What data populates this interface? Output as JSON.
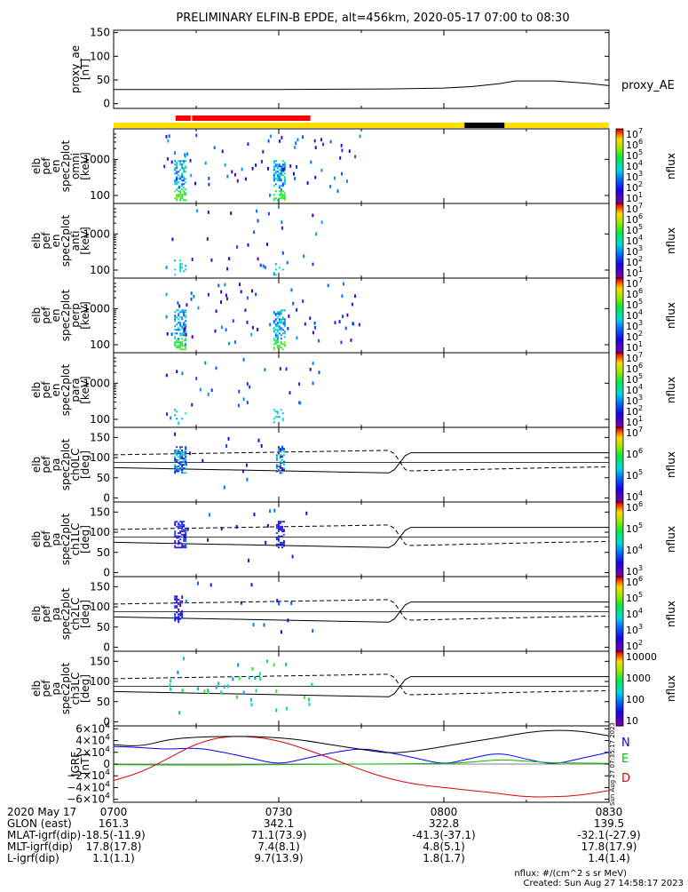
{
  "title": "PRELIMINARY ELFIN-B EPDE, alt=456km, 2020-05-17 07:00 to 08:30",
  "colors": {
    "status_yellow": "#ffe000",
    "status_red": "#ff0000",
    "status_black": "#000000",
    "grf_n": "#0000ff",
    "grf_e": "#00c000",
    "grf_d": "#e00000",
    "grf_total": "#000000"
  },
  "status_bar": {
    "background": "yellow",
    "segments": [
      {
        "color": "red",
        "start": "07:11:15",
        "end": "07:14:00"
      },
      {
        "color": "red",
        "start": "07:14:15",
        "end": "07:35:45"
      },
      {
        "color": "black",
        "start": "08:03:45",
        "end": "08:11:00"
      }
    ]
  },
  "chart_data": [
    {
      "type": "line",
      "panel": "proxy_ae",
      "ylabel": [
        "proxy_ae",
        "[nT]"
      ],
      "yticks": [
        "150",
        "100",
        "50",
        "0"
      ],
      "ylim": [
        -10,
        155
      ],
      "series": [
        {
          "name": "proxy_AE",
          "x": [
            "07:00",
            "07:30",
            "07:50",
            "08:00",
            "08:05",
            "08:10",
            "08:13",
            "08:20",
            "08:26",
            "08:30"
          ],
          "values": [
            30,
            30,
            31,
            33,
            36,
            42,
            48,
            48,
            43,
            38
          ]
        }
      ]
    },
    {
      "type": "heatmap",
      "panel": "spec-omni",
      "ylabel": [
        "elb",
        "pef",
        "en",
        "spec2plot",
        "omni",
        "[keV]"
      ],
      "yticks": [
        "1000",
        "100"
      ],
      "yscale": "log",
      "ylim": [
        60,
        7000
      ],
      "colorbar": {
        "label": "nflux",
        "ticks": [
          "10",
          "10",
          "10",
          "10",
          "10",
          "10",
          "10"
        ],
        "exp": [
          "7",
          "6",
          "5",
          "4",
          "3",
          "2",
          "1"
        ]
      }
    },
    {
      "type": "heatmap",
      "panel": "spec-anti",
      "ylabel": [
        "elb",
        "pef",
        "en",
        "spec2plot",
        "anti",
        "[keV]"
      ],
      "yticks": [
        "1000",
        "100"
      ],
      "yscale": "log",
      "ylim": [
        60,
        7000
      ],
      "colorbar": {
        "label": "nflux",
        "ticks": [
          "10",
          "10",
          "10",
          "10",
          "10",
          "10",
          "10"
        ],
        "exp": [
          "7",
          "6",
          "5",
          "4",
          "3",
          "2",
          "1"
        ]
      }
    },
    {
      "type": "heatmap",
      "panel": "spec-perp",
      "ylabel": [
        "elb",
        "pef",
        "en",
        "spec2plot",
        "perp",
        "[keV]"
      ],
      "yticks": [
        "1000",
        "100"
      ],
      "yscale": "log",
      "ylim": [
        60,
        7000
      ],
      "colorbar": {
        "label": "nflux",
        "ticks": [
          "10",
          "10",
          "10",
          "10",
          "10",
          "10",
          "10"
        ],
        "exp": [
          "7",
          "6",
          "5",
          "4",
          "3",
          "2",
          "1"
        ]
      }
    },
    {
      "type": "heatmap",
      "panel": "spec-para",
      "ylabel": [
        "elb",
        "pef",
        "en",
        "spec2plot",
        "para",
        "[keV]"
      ],
      "yticks": [
        "1000",
        "100"
      ],
      "yscale": "log",
      "ylim": [
        60,
        7000
      ],
      "colorbar": {
        "label": "nflux",
        "ticks": [
          "10",
          "10",
          "10",
          "10",
          "10",
          "10",
          "10"
        ],
        "exp": [
          "7",
          "6",
          "5",
          "4",
          "3",
          "2",
          "1"
        ]
      }
    },
    {
      "type": "heatmap",
      "panel": "pa-ch0",
      "ylabel": [
        "elb",
        "pef",
        "pa",
        "spec2plot",
        "ch0LC",
        "[deg]"
      ],
      "yticks": [
        "150",
        "100",
        "50",
        "0"
      ],
      "ylim": [
        -10,
        175
      ],
      "colorbar": {
        "label": "nflux",
        "ticks": [
          "10",
          "10",
          "10",
          "10"
        ],
        "exp": [
          "7",
          "6",
          "5",
          "4"
        ]
      }
    },
    {
      "type": "heatmap",
      "panel": "pa-ch1",
      "ylabel": [
        "elb",
        "pef",
        "pa",
        "spec2plot",
        "ch1LC",
        "[deg]"
      ],
      "yticks": [
        "150",
        "100",
        "50",
        "0"
      ],
      "ylim": [
        -10,
        175
      ],
      "colorbar": {
        "label": "nflux",
        "ticks": [
          "10",
          "10",
          "10",
          "10"
        ],
        "exp": [
          "6",
          "5",
          "4",
          "3"
        ]
      }
    },
    {
      "type": "heatmap",
      "panel": "pa-ch2",
      "ylabel": [
        "elb",
        "pef",
        "pa",
        "spec2plot",
        "ch2LC",
        "[deg]"
      ],
      "yticks": [
        "150",
        "100",
        "50",
        "0"
      ],
      "ylim": [
        -10,
        175
      ],
      "colorbar": {
        "label": "nflux",
        "ticks": [
          "10",
          "10",
          "10",
          "10",
          "10"
        ],
        "exp": [
          "6",
          "5",
          "4",
          "3",
          "2"
        ]
      }
    },
    {
      "type": "heatmap",
      "panel": "pa-ch3",
      "ylabel": [
        "elb",
        "pef",
        "pa",
        "spec2plot",
        "ch3LC",
        "[deg]"
      ],
      "yticks": [
        "150",
        "100",
        "50",
        "0"
      ],
      "ylim": [
        -10,
        175
      ],
      "colorbar": {
        "label": "nflux",
        "ticks": [
          "10000",
          "1000",
          "100",
          "10"
        ],
        "exp": [
          "",
          "",
          "",
          ""
        ]
      }
    },
    {
      "type": "line",
      "panel": "igrf",
      "ylabel": [
        "IGRF",
        "[nT]"
      ],
      "yticks": [
        "6×10",
        "4×10",
        "2×10",
        "0",
        "−2×10",
        "−4×10",
        "−6×10"
      ],
      "ytick_exp": [
        "4",
        "4",
        "4",
        "",
        "4",
        "4",
        "4"
      ],
      "ylim": [
        -65000,
        65000
      ],
      "legend": [
        "N",
        "E",
        "D"
      ],
      "side_text": "Sun Aug 27 07:35:17 2023",
      "series": [
        {
          "name": "N",
          "x": [
            "07:00",
            "07:05",
            "07:10",
            "07:15",
            "07:20",
            "07:25",
            "07:30",
            "07:35",
            "07:40",
            "07:45",
            "07:50",
            "07:55",
            "08:00",
            "08:05",
            "08:10",
            "08:15",
            "08:20",
            "08:25",
            "08:30"
          ],
          "values": [
            30000,
            28000,
            25000,
            28000,
            20000,
            10000,
            -1000,
            10000,
            20000,
            27000,
            20000,
            10000,
            -1000,
            10000,
            20000,
            8000,
            -1000,
            10000,
            20000
          ]
        },
        {
          "name": "E",
          "x": [
            "07:00",
            "07:15",
            "07:30",
            "07:45",
            "08:00",
            "08:05",
            "08:10",
            "08:15",
            "08:20",
            "08:25",
            "08:30"
          ],
          "values": [
            -1000,
            -2000,
            -1000,
            0,
            1000,
            3000,
            8000,
            5000,
            2000,
            2000,
            1000
          ]
        },
        {
          "name": "D",
          "x": [
            "07:00",
            "07:05",
            "07:10",
            "07:15",
            "07:20",
            "07:25",
            "07:30",
            "07:35",
            "07:40",
            "07:45",
            "07:50",
            "07:55",
            "08:00",
            "08:05",
            "08:10",
            "08:15",
            "08:20",
            "08:25",
            "08:30"
          ],
          "values": [
            -28000,
            -14000,
            10000,
            35000,
            47000,
            47000,
            40000,
            25000,
            8000,
            -10000,
            -25000,
            -35000,
            -40000,
            -45000,
            -50000,
            -56000,
            -56000,
            -53000,
            -45000
          ]
        },
        {
          "name": "total",
          "x": [
            "07:00",
            "07:05",
            "07:10",
            "07:15",
            "07:20",
            "07:25",
            "07:30",
            "07:35",
            "07:40",
            "07:45",
            "07:50",
            "07:55",
            "08:00",
            "08:05",
            "08:10",
            "08:15",
            "08:20",
            "08:25",
            "08:30"
          ],
          "values": [
            33000,
            30000,
            42000,
            46000,
            47000,
            47000,
            45000,
            40000,
            32000,
            25000,
            18000,
            22000,
            30000,
            38000,
            45000,
            54000,
            58000,
            56000,
            48000
          ]
        }
      ]
    }
  ],
  "footer": {
    "row_labels": [
      "2020 May 17",
      "GLON (east)",
      "MLAT-igrf(dip)",
      "MLT-igrf(dip)",
      "L-igrf(dip)"
    ],
    "row_values_first": [
      "",
      "161.3",
      "-18.5(-11.9)",
      "17.8(17.8)",
      "1.1(1.1)"
    ],
    "columns": [
      {
        "time": "0700",
        "values": [
          "161.3",
          "-18.5(-11.9)",
          "17.8(17.8)",
          "1.1(1.1)"
        ]
      },
      {
        "time": "0730",
        "values": [
          "342.1",
          "71.1(73.9)",
          "7.4(8.1)",
          "9.7(13.9)"
        ]
      },
      {
        "time": "0800",
        "values": [
          "322.8",
          "-41.3(-37.1)",
          "4.8(5.1)",
          "1.8(1.7)"
        ]
      },
      {
        "time": "0830",
        "values": [
          "139.5",
          "-32.1(-27.9)",
          "17.8(17.9)",
          "1.4(1.4)"
        ]
      }
    ],
    "units_note": "nflux: #/(cm^2 s sr MeV)",
    "created": "Created: Sun Aug 27 14:58:17 2023"
  }
}
